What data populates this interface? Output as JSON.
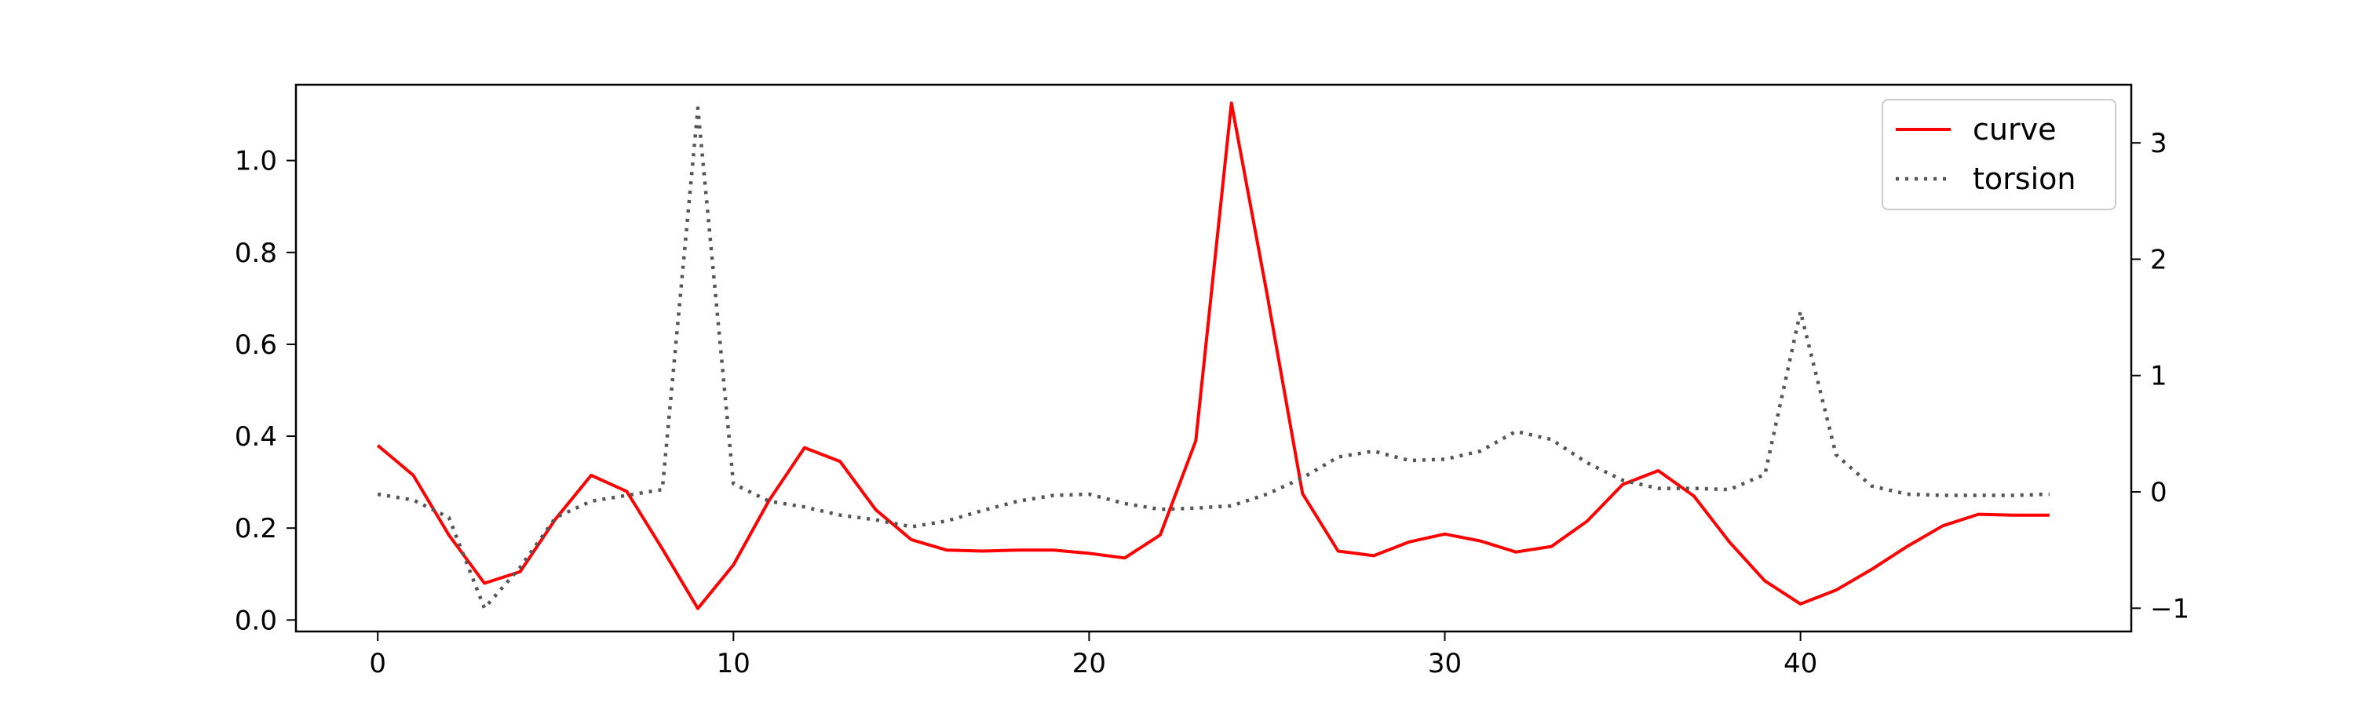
{
  "chart_data": {
    "type": "line",
    "title": "",
    "xlabel": "",
    "ylabel": "",
    "y2label": "",
    "grid": false,
    "legend_position": "top-right",
    "xlim": [
      -2.3,
      49.3
    ],
    "ylim": [
      -0.025,
      1.165
    ],
    "y2lim": [
      -1.2,
      3.5
    ],
    "x_ticks": [
      0,
      10,
      20,
      30,
      40
    ],
    "x_tick_labels": [
      "0",
      "10",
      "20",
      "30",
      "40"
    ],
    "y_ticks": [
      0.0,
      0.2,
      0.4,
      0.6,
      0.8,
      1.0
    ],
    "y_tick_labels": [
      "0.0",
      "0.2",
      "0.4",
      "0.6",
      "0.8",
      "1.0"
    ],
    "y2_ticks": [
      -1,
      0,
      1,
      2,
      3
    ],
    "y2_tick_labels": [
      "−1",
      "0",
      "1",
      "2",
      "3"
    ],
    "x": [
      0,
      1,
      2,
      3,
      4,
      5,
      6,
      7,
      8,
      9,
      10,
      11,
      12,
      13,
      14,
      15,
      16,
      17,
      18,
      19,
      20,
      21,
      22,
      23,
      24,
      25,
      26,
      27,
      28,
      29,
      30,
      31,
      32,
      33,
      34,
      35,
      36,
      37,
      38,
      39,
      40,
      41,
      42,
      43,
      44,
      45,
      46,
      47
    ],
    "series": [
      {
        "name": "curve",
        "axis": "left",
        "color": "#ff0000",
        "style": "solid",
        "values": [
          0.38,
          0.315,
          0.185,
          0.08,
          0.105,
          0.22,
          0.315,
          0.28,
          0.155,
          0.025,
          0.12,
          0.26,
          0.375,
          0.345,
          0.24,
          0.175,
          0.152,
          0.15,
          0.152,
          0.152,
          0.145,
          0.135,
          0.185,
          0.39,
          1.125,
          0.71,
          0.275,
          0.15,
          0.14,
          0.17,
          0.187,
          0.172,
          0.148,
          0.16,
          0.215,
          0.295,
          0.325,
          0.27,
          0.17,
          0.085,
          0.035,
          0.065,
          0.11,
          0.16,
          0.205,
          0.23,
          0.228,
          0.228
        ]
      },
      {
        "name": "torsion",
        "axis": "right",
        "color": "#555555",
        "style": "dotted",
        "values": [
          -0.02,
          -0.07,
          -0.22,
          -1.0,
          -0.65,
          -0.22,
          -0.08,
          -0.03,
          0.02,
          3.3,
          0.07,
          -0.08,
          -0.13,
          -0.2,
          -0.24,
          -0.3,
          -0.25,
          -0.16,
          -0.08,
          -0.03,
          -0.02,
          -0.1,
          -0.15,
          -0.14,
          -0.12,
          -0.02,
          0.12,
          0.3,
          0.35,
          0.27,
          0.28,
          0.35,
          0.52,
          0.45,
          0.25,
          0.1,
          0.03,
          0.03,
          0.02,
          0.15,
          1.55,
          0.32,
          0.05,
          -0.02,
          -0.03,
          -0.03,
          -0.03,
          -0.02
        ]
      }
    ]
  }
}
